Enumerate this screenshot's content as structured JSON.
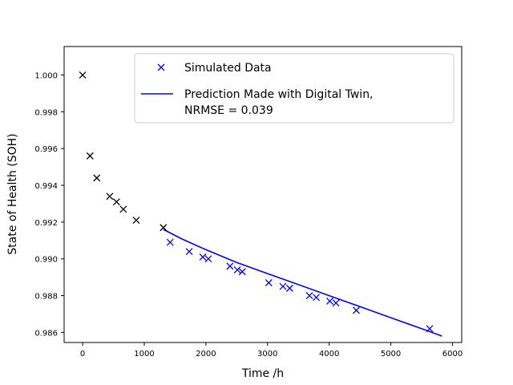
{
  "chart_data": {
    "type": "scatter",
    "xlabel": "Time /h",
    "ylabel": "State of Health (SOH)",
    "xlim": [
      -300,
      6150
    ],
    "ylim": [
      0.98545,
      1.00155
    ],
    "x_ticks": [
      0,
      1000,
      2000,
      3000,
      4000,
      5000,
      6000
    ],
    "y_ticks": [
      0.986,
      0.988,
      0.99,
      0.992,
      0.994,
      0.996,
      0.998,
      1.0
    ],
    "x_tick_labels": [
      "0",
      "1000",
      "2000",
      "3000",
      "4000",
      "5000",
      "6000"
    ],
    "y_tick_labels": [
      "0.986",
      "0.988",
      "0.990",
      "0.992",
      "0.994",
      "0.996",
      "0.998",
      "1.000"
    ],
    "grid": false,
    "legend_position": "top-right",
    "series": [
      {
        "name": "Simulated Data",
        "type": "scatter",
        "marker": "x",
        "color": "#0000ff",
        "x": [
          1420,
          1730,
          1950,
          2040,
          2390,
          2510,
          2590,
          3020,
          3250,
          3360,
          3680,
          3790,
          4010,
          4110,
          4440,
          5630
        ],
        "y": [
          0.9909,
          0.9904,
          0.9901,
          0.99,
          0.9896,
          0.9894,
          0.9893,
          0.9887,
          0.9885,
          0.9884,
          0.988,
          0.9879,
          0.9877,
          0.9876,
          0.9872,
          0.9862
        ]
      },
      {
        "name": "",
        "type": "scatter",
        "marker": "x",
        "color": "#000000",
        "x": [
          0,
          120,
          230,
          440,
          550,
          660,
          870,
          1310
        ],
        "y": [
          1.0,
          0.9956,
          0.9944,
          0.9934,
          0.9931,
          0.9927,
          0.9921,
          0.9917
        ]
      },
      {
        "name": "Prediction Made with Digital Twin, NRMSE = 0.039",
        "type": "line",
        "color": "#0000ff",
        "x": [
          1310,
          1600,
          2000,
          2500,
          3000,
          3500,
          4000,
          4500,
          5000,
          5500,
          5830
        ],
        "y": [
          0.9916,
          0.9911,
          0.9905,
          0.9898,
          0.9892,
          0.9886,
          0.988,
          0.9874,
          0.9868,
          0.9862,
          0.9858
        ]
      }
    ],
    "legend": {
      "entries": [
        {
          "series_index": 0,
          "label_lines": [
            "Simulated Data"
          ]
        },
        {
          "series_index": 2,
          "label_lines": [
            "Prediction Made with Digital Twin,",
            "NRMSE = 0.039"
          ]
        }
      ]
    }
  }
}
